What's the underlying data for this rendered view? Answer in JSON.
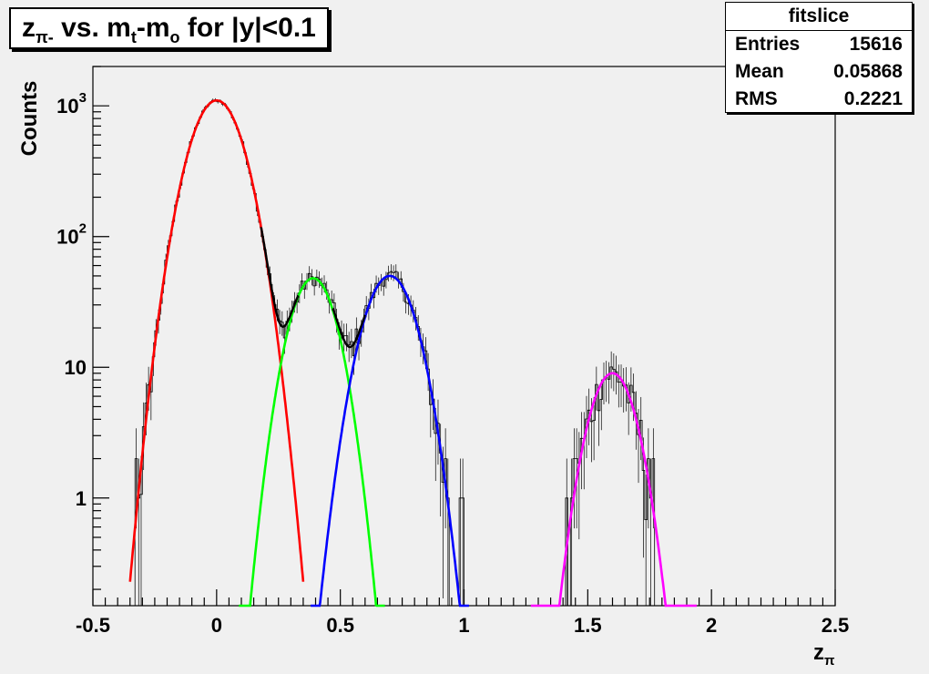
{
  "title": {
    "main": "z",
    "sub": "π-",
    "rest1": " vs. m",
    "sub2": "t",
    "rest2": "-m",
    "sub3": "o",
    "rest3": " for |y|<0.1"
  },
  "stats": {
    "title": "fitslice",
    "rows": [
      {
        "label": "Entries",
        "value": "15616"
      },
      {
        "label": "Mean",
        "value": "0.05868"
      },
      {
        "label": "RMS",
        "value": "0.2221"
      }
    ]
  },
  "chart_data": {
    "type": "line",
    "xlabel": "z",
    "xlabel_sub": "π",
    "ylabel": "Counts",
    "xlim": [
      -0.5,
      2.5
    ],
    "ylim": [
      0.15,
      2000
    ],
    "yscale": "log",
    "xticks": [
      "-0.5",
      "0",
      "0.5",
      "1",
      "1.5",
      "2",
      "2.5"
    ],
    "yticks": [
      {
        "value": 1,
        "label": "1"
      },
      {
        "value": 10,
        "label": "10"
      },
      {
        "value": 100,
        "label": "10",
        "exp": "2"
      },
      {
        "value": 1000,
        "label": "10",
        "exp": "3"
      }
    ],
    "series": [
      {
        "color": "#ff0000",
        "amplitude": 1100,
        "mean": 0.0,
        "sigma": 0.085,
        "xrange": [
          -0.35,
          0.35
        ]
      },
      {
        "color": "#00ff00",
        "amplitude": 48,
        "mean": 0.39,
        "sigma": 0.075,
        "xrange": [
          0.09,
          0.68
        ]
      },
      {
        "color": "#0000ff",
        "amplitude": 50,
        "mean": 0.7,
        "sigma": 0.083,
        "xrange": [
          0.38,
          1.02
        ]
      },
      {
        "color": "#ff00ff",
        "amplitude": 9,
        "mean": 1.6,
        "sigma": 0.075,
        "xrange": [
          1.27,
          1.94
        ]
      }
    ],
    "total_fit_color": "#000000",
    "histogram_color": "#000000"
  }
}
